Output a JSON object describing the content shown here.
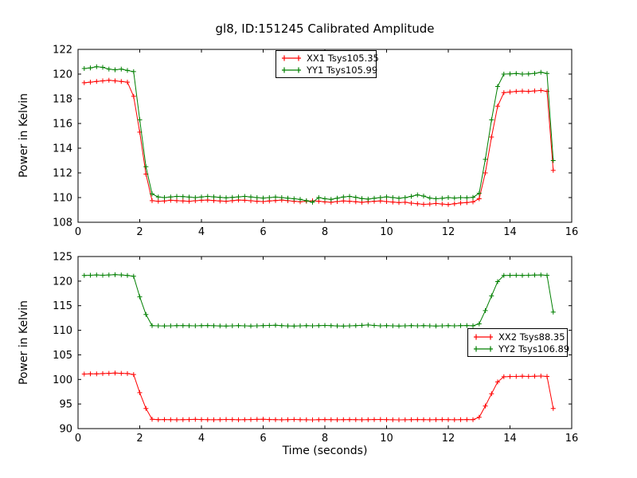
{
  "figure": {
    "title": "gl8, ID:151245 Calibrated Amplitude",
    "background": "#ffffff",
    "text_color": "#000000"
  },
  "chart_data": [
    {
      "type": "line",
      "title": "gl8, ID:151245 Calibrated Amplitude",
      "xlabel": "",
      "ylabel": "Power in Kelvin",
      "xlim": [
        0,
        16
      ],
      "ylim": [
        108,
        122
      ],
      "xticks": [
        0,
        2,
        4,
        6,
        8,
        10,
        12,
        14,
        16
      ],
      "yticks": [
        108,
        110,
        112,
        114,
        116,
        118,
        120,
        122
      ],
      "grid": false,
      "legend_position": "upper center",
      "x": [
        0.2,
        0.4,
        0.6,
        0.8,
        1.0,
        1.2,
        1.4,
        1.6,
        1.8,
        2.0,
        2.2,
        2.4,
        2.6,
        2.8,
        3.0,
        3.2,
        3.4,
        3.6,
        3.8,
        4.0,
        4.2,
        4.4,
        4.6,
        4.8,
        5.0,
        5.2,
        5.4,
        5.6,
        5.8,
        6.0,
        6.2,
        6.4,
        6.6,
        6.8,
        7.0,
        7.2,
        7.4,
        7.6,
        7.8,
        8.0,
        8.2,
        8.4,
        8.6,
        8.8,
        9.0,
        9.2,
        9.4,
        9.6,
        9.8,
        10.0,
        10.2,
        10.4,
        10.6,
        10.8,
        11.0,
        11.2,
        11.4,
        11.6,
        11.8,
        12.0,
        12.2,
        12.4,
        12.6,
        12.8,
        13.0,
        13.2,
        13.4,
        13.6,
        13.8,
        14.0,
        14.2,
        14.4,
        14.6,
        14.8,
        15.0,
        15.2,
        15.4
      ],
      "series": [
        {
          "name": "XX1 Tsys105.35",
          "color": "#ff0000",
          "marker": "+",
          "values": [
            119.3,
            119.35,
            119.4,
            119.45,
            119.5,
            119.45,
            119.4,
            119.35,
            118.2,
            115.3,
            111.9,
            109.75,
            109.7,
            109.72,
            109.78,
            109.75,
            109.72,
            109.7,
            109.74,
            109.78,
            109.8,
            109.76,
            109.72,
            109.7,
            109.75,
            109.8,
            109.78,
            109.74,
            109.7,
            109.68,
            109.72,
            109.76,
            109.8,
            109.75,
            109.7,
            109.66,
            109.7,
            109.74,
            109.7,
            109.65,
            109.62,
            109.68,
            109.72,
            109.7,
            109.66,
            109.62,
            109.66,
            109.7,
            109.72,
            109.68,
            109.64,
            109.6,
            109.62,
            109.55,
            109.5,
            109.45,
            109.48,
            109.52,
            109.48,
            109.44,
            109.5,
            109.56,
            109.6,
            109.65,
            109.9,
            112.0,
            114.9,
            117.4,
            118.5,
            118.55,
            118.6,
            118.62,
            118.6,
            118.64,
            118.68,
            118.6,
            112.2
          ]
        },
        {
          "name": "YY1 Tsys105.99",
          "color": "#007f00",
          "marker": "+",
          "values": [
            120.45,
            120.5,
            120.6,
            120.55,
            120.4,
            120.35,
            120.4,
            120.3,
            120.2,
            116.3,
            112.5,
            110.3,
            110.05,
            110.0,
            110.05,
            110.1,
            110.08,
            110.04,
            110.0,
            110.05,
            110.1,
            110.06,
            110.02,
            109.98,
            110.02,
            110.06,
            110.1,
            110.05,
            110.0,
            109.96,
            110.0,
            110.04,
            110.0,
            109.95,
            109.9,
            109.85,
            109.75,
            109.62,
            110.0,
            109.9,
            109.85,
            109.95,
            110.05,
            110.1,
            110.02,
            109.92,
            109.88,
            109.94,
            110.0,
            110.06,
            110.0,
            109.94,
            110.0,
            110.1,
            110.22,
            110.12,
            109.96,
            109.9,
            109.94,
            110.0,
            109.96,
            110.0,
            109.98,
            110.02,
            110.35,
            113.1,
            116.3,
            119.0,
            120.0,
            120.02,
            120.05,
            120.0,
            120.02,
            120.06,
            120.15,
            120.05,
            113.0
          ]
        }
      ]
    },
    {
      "type": "line",
      "title": "",
      "xlabel": "Time (seconds)",
      "ylabel": "Power in Kelvin",
      "xlim": [
        0,
        16
      ],
      "ylim": [
        90,
        125
      ],
      "xticks": [
        0,
        2,
        4,
        6,
        8,
        10,
        12,
        14,
        16
      ],
      "yticks": [
        90,
        95,
        100,
        105,
        110,
        115,
        120,
        125
      ],
      "grid": false,
      "legend_position": "center right",
      "x": [
        0.2,
        0.4,
        0.6,
        0.8,
        1.0,
        1.2,
        1.4,
        1.6,
        1.8,
        2.0,
        2.2,
        2.4,
        2.6,
        2.8,
        3.0,
        3.2,
        3.4,
        3.6,
        3.8,
        4.0,
        4.2,
        4.4,
        4.6,
        4.8,
        5.0,
        5.2,
        5.4,
        5.6,
        5.8,
        6.0,
        6.2,
        6.4,
        6.6,
        6.8,
        7.0,
        7.2,
        7.4,
        7.6,
        7.8,
        8.0,
        8.2,
        8.4,
        8.6,
        8.8,
        9.0,
        9.2,
        9.4,
        9.6,
        9.8,
        10.0,
        10.2,
        10.4,
        10.6,
        10.8,
        11.0,
        11.2,
        11.4,
        11.6,
        11.8,
        12.0,
        12.2,
        12.4,
        12.6,
        12.8,
        13.0,
        13.2,
        13.4,
        13.6,
        13.8,
        14.0,
        14.2,
        14.4,
        14.6,
        14.8,
        15.0,
        15.2,
        15.4
      ],
      "series": [
        {
          "name": "XX2 Tsys88.35",
          "color": "#ff0000",
          "marker": "+",
          "values": [
            101.1,
            101.15,
            101.15,
            101.2,
            101.25,
            101.3,
            101.25,
            101.2,
            101.0,
            97.3,
            94.1,
            91.9,
            91.82,
            91.85,
            91.83,
            91.8,
            91.82,
            91.85,
            91.88,
            91.85,
            91.82,
            91.8,
            91.83,
            91.86,
            91.84,
            91.8,
            91.82,
            91.85,
            91.88,
            91.9,
            91.85,
            91.82,
            91.8,
            91.83,
            91.86,
            91.83,
            91.8,
            91.78,
            91.82,
            91.85,
            91.83,
            91.8,
            91.82,
            91.85,
            91.83,
            91.8,
            91.82,
            91.84,
            91.86,
            91.83,
            91.8,
            91.78,
            91.8,
            91.83,
            91.85,
            91.83,
            91.8,
            91.82,
            91.84,
            91.82,
            91.8,
            91.83,
            91.85,
            91.83,
            92.3,
            94.6,
            97.1,
            99.5,
            100.55,
            100.6,
            100.62,
            100.65,
            100.62,
            100.66,
            100.7,
            100.62,
            94.1
          ]
        },
        {
          "name": "YY2 Tsys106.89",
          "color": "#007f00",
          "marker": "+",
          "values": [
            121.15,
            121.2,
            121.25,
            121.2,
            121.25,
            121.3,
            121.25,
            121.15,
            121.0,
            116.8,
            113.2,
            110.95,
            110.9,
            110.88,
            110.9,
            110.93,
            110.95,
            110.92,
            110.9,
            110.93,
            110.96,
            110.92,
            110.88,
            110.86,
            110.9,
            110.94,
            110.9,
            110.87,
            110.9,
            110.94,
            110.98,
            111.02,
            110.94,
            110.88,
            110.85,
            110.9,
            110.94,
            110.9,
            110.94,
            110.98,
            110.94,
            110.88,
            110.86,
            110.9,
            110.95,
            111.0,
            111.08,
            110.98,
            110.9,
            110.94,
            110.9,
            110.86,
            110.9,
            110.94,
            110.9,
            110.94,
            110.9,
            110.86,
            110.9,
            110.94,
            110.9,
            110.93,
            110.96,
            110.92,
            111.3,
            114.0,
            117.0,
            119.9,
            121.15,
            121.18,
            121.2,
            121.16,
            121.2,
            121.22,
            121.25,
            121.18,
            113.7
          ]
        }
      ]
    }
  ]
}
